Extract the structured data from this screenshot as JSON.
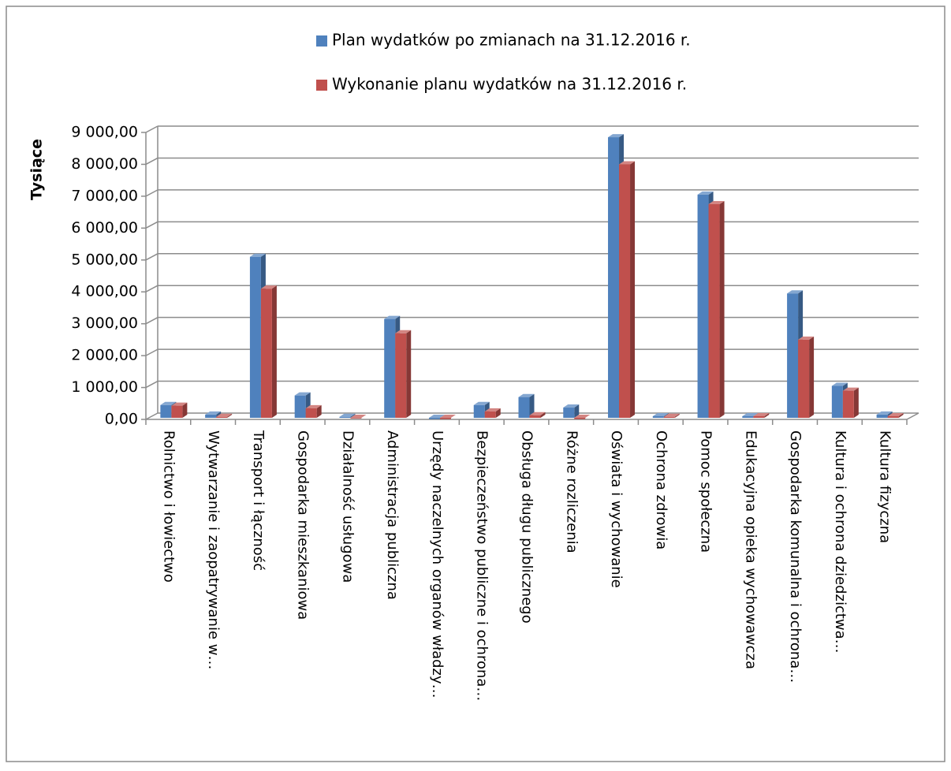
{
  "chart_data": {
    "type": "bar3d",
    "y_label": "Tysiące",
    "categories": [
      "Rolnictwo i łowiectwo",
      "Wytwarzanie i zaopatrywanie w…",
      "Transport i łączność",
      "Gospodarka mieszkaniowa",
      "Działalność usługowa",
      "Administracja publiczna",
      "Urzędy naczelnych organów władzy…",
      "Bezpieczeństwo publiczne i ochrona…",
      "Obsługa długu publicznego",
      "Różne rozliczenia",
      "Oświata i wychowanie",
      "Ochrona zdrowia",
      "Pomoc społeczna",
      "Edukacyjna opieka wychowawcza",
      "Gospodarka komunalna i ochrona…",
      "Kultura i ochrona dziedzictwa…",
      "Kultura fizyczna"
    ],
    "series": [
      {
        "name": "Plan wydatków po zmianach na 31.12.2016 r.",
        "color": "#4f81bd",
        "values": [
          450,
          150,
          5100,
          750,
          80,
          3150,
          10,
          450,
          700,
          370,
          8850,
          100,
          7050,
          100,
          3950,
          1050,
          150
        ]
      },
      {
        "name": "Wykonanie planu wydatków na 31.12.2016 r.",
        "color": "#c0504d",
        "values": [
          430,
          80,
          4100,
          350,
          30,
          2700,
          10,
          250,
          130,
          10,
          8000,
          80,
          6750,
          100,
          2500,
          900,
          100
        ]
      }
    ],
    "ylim": [
      0,
      9000
    ],
    "yticks": [
      {
        "value": 0,
        "label": "0,00"
      },
      {
        "value": 1000,
        "label": "1 000,00"
      },
      {
        "value": 2000,
        "label": "2 000,00"
      },
      {
        "value": 3000,
        "label": "3 000,00"
      },
      {
        "value": 4000,
        "label": "4 000,00"
      },
      {
        "value": 5000,
        "label": "5 000,00"
      },
      {
        "value": 6000,
        "label": "6 000,00"
      },
      {
        "value": 7000,
        "label": "7 000,00"
      },
      {
        "value": 8000,
        "label": "8 000,00"
      },
      {
        "value": 9000,
        "label": "9 000,00"
      }
    ],
    "grid": true
  }
}
